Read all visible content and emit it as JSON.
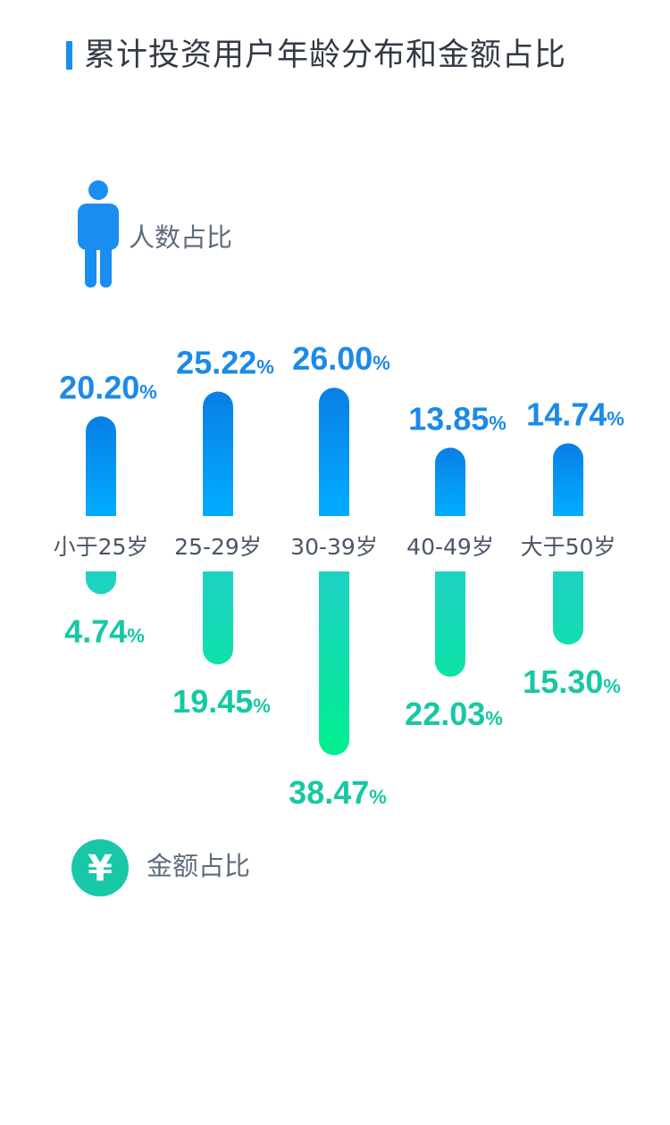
{
  "title": "累计投资用户年龄分布和金额占比",
  "legend": {
    "count_label": "人数占比",
    "count_icon": "person-icon",
    "amount_label": "金额占比",
    "amount_icon": "yen-icon",
    "yen_symbol": "¥"
  },
  "colors": {
    "count_top": "#0a7ee6",
    "count_bottom": "#00adff",
    "count_text": "#1b8ae8",
    "amount_top": "#1ed1c4",
    "amount_bottom": "#00f08e",
    "amount_text": "#16c8a3",
    "category_text": "#4a5566",
    "title_bar": "#1a8ef0"
  },
  "chart_data": {
    "type": "bar",
    "categories": [
      "小于25岁",
      "25-29岁",
      "30-39岁",
      "40-49岁",
      "大于50岁"
    ],
    "series": [
      {
        "name": "人数占比",
        "values": [
          20.2,
          25.22,
          26.0,
          13.85,
          14.74
        ],
        "labels": [
          "20.20",
          "25.22",
          "26.00",
          "13.85",
          "14.74"
        ]
      },
      {
        "name": "金额占比",
        "values": [
          4.74,
          19.45,
          38.47,
          22.03,
          15.3
        ],
        "labels": [
          "4.74",
          "19.45",
          "38.47",
          "22.03",
          "15.30"
        ]
      }
    ],
    "unit": "%"
  }
}
